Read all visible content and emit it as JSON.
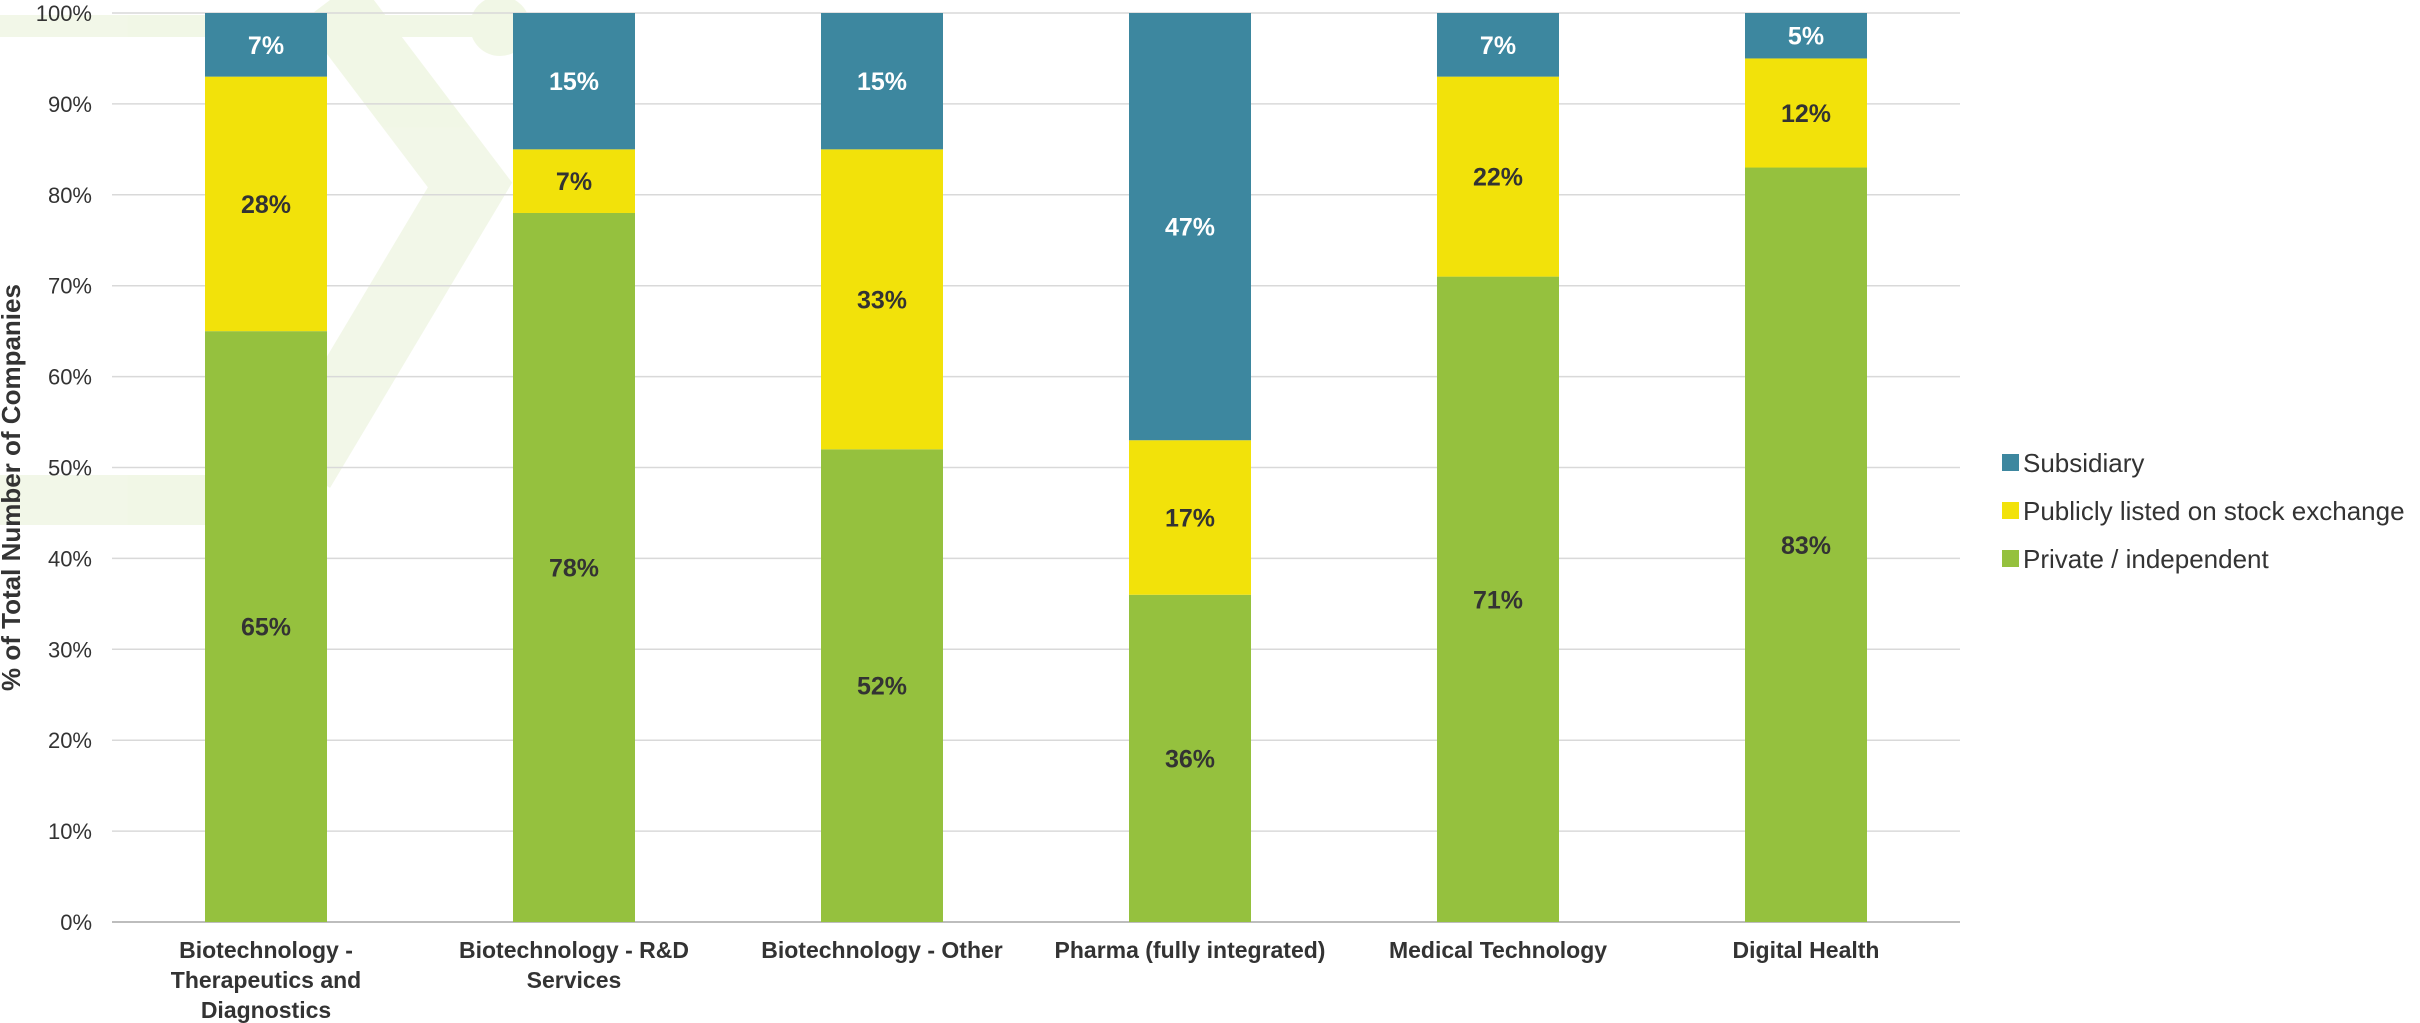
{
  "chart_data": {
    "type": "bar",
    "stacked": true,
    "title": "",
    "xlabel": "",
    "ylabel": "% of Total Number of Companies",
    "ylim": [
      0,
      100
    ],
    "yticks": [
      0,
      10,
      20,
      30,
      40,
      50,
      60,
      70,
      80,
      90,
      100
    ],
    "ytick_labels": [
      "0%",
      "10%",
      "20%",
      "30%",
      "40%",
      "50%",
      "60%",
      "70%",
      "80%",
      "90%",
      "100%"
    ],
    "grid": true,
    "legend_position": "right",
    "categories": [
      [
        "Biotechnology -",
        "Therapeutics and",
        "Diagnostics"
      ],
      [
        "Biotechnology - R&D",
        "Services"
      ],
      [
        "Biotechnology - Other"
      ],
      [
        "Pharma (fully integrated)"
      ],
      [
        "Medical Technology"
      ],
      [
        "Digital Health"
      ]
    ],
    "series": [
      {
        "name": "Private / independent",
        "color": "#95c13e",
        "label_color": "#333333",
        "values": [
          65,
          78,
          52,
          36,
          71,
          83
        ],
        "labels": [
          "65%",
          "78%",
          "52%",
          "36%",
          "71%",
          "83%"
        ]
      },
      {
        "name": "Publicly listed on stock exchange",
        "color": "#f2e20a",
        "label_color": "#333333",
        "values": [
          28,
          7,
          33,
          17,
          22,
          12
        ],
        "labels": [
          "28%",
          "7%",
          "33%",
          "17%",
          "22%",
          "12%"
        ]
      },
      {
        "name": "Subsidiary",
        "color": "#3d879f",
        "label_color": "#ffffff",
        "values": [
          7,
          15,
          15,
          47,
          7,
          5
        ],
        "labels": [
          "7%",
          "15%",
          "15%",
          "47%",
          "7%",
          "5%"
        ]
      }
    ],
    "legend_order": [
      "Subsidiary",
      "Publicly listed on stock exchange",
      "Private / independent"
    ]
  }
}
